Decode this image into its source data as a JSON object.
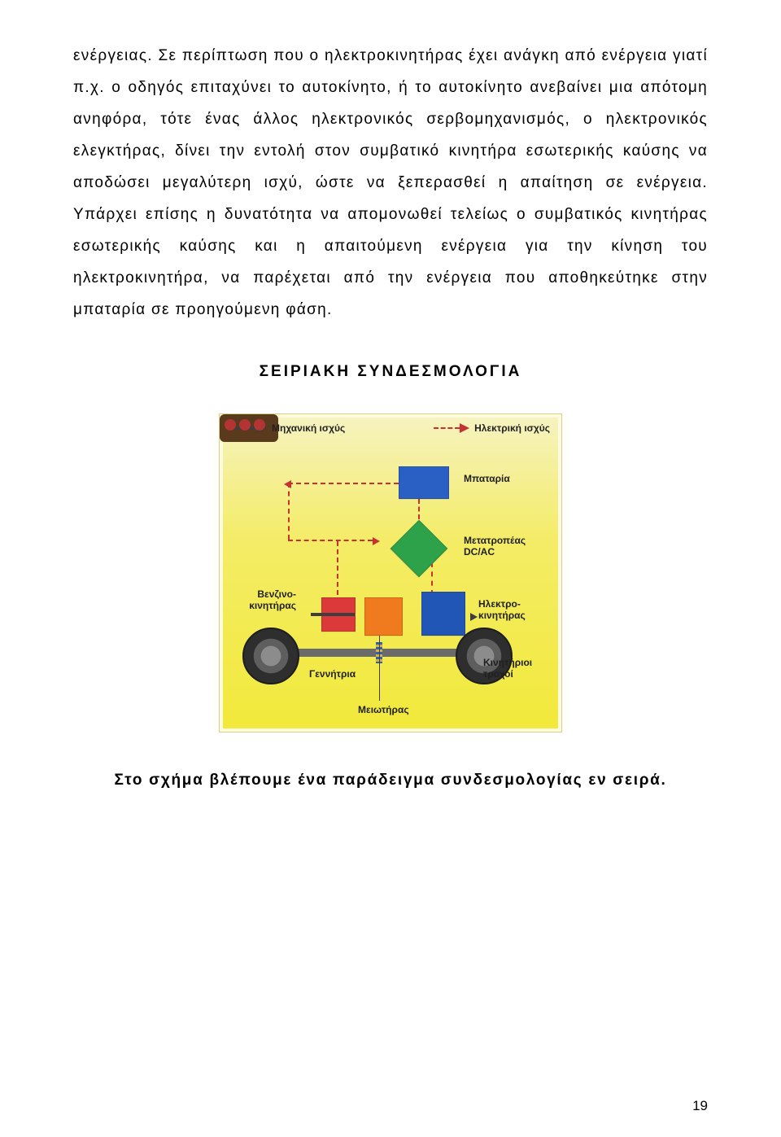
{
  "body_paragraph": "ενέργειας. Σε περίπτωση που ο ηλεκτροκινητήρας έχει ανάγκη από ενέργεια γιατί π.χ. ο οδηγός επιταχύνει το αυτοκίνητο, ή το αυτοκίνητο ανεβαίνει μια απότομη ανηφόρα, τότε ένας άλλος ηλεκτρονικός σερβομηχανισμός, ο ηλεκτρονικός ελεγκτήρας, δίνει την εντολή στον συμβατικό κινητήρα εσωτερικής καύσης να αποδώσει μεγαλύτερη ισχύ, ώστε να ξεπερασθεί η απαίτηση σε ενέργεια. Υπάρχει επίσης η δυνατότητα να απομονωθεί τελείως ο συμβατικός κινητήρας εσωτερικής καύσης και η απαιτούμενη ενέργεια για την κίνηση του ηλεκτροκινητήρα, να παρέχεται από την ενέργεια που αποθηκεύτηκε στην μπαταρία σε προηγούμενη φάση.",
  "section_heading": "ΣΕΙΡΙΑΚΗ ΣΥΝΔΕΣΜΟΛΟΓΙΑ",
  "caption": "Στο σχήμα βλέπουμε ένα παράδειγμα συνδεσμολογίας εν σειρά.",
  "page_number": "19",
  "diagram": {
    "type": "infographic",
    "background_gradient": [
      "#f6f3c2",
      "#f4ec66",
      "#f2e93a"
    ],
    "legend": {
      "mechanical": {
        "label": "Μηχανική ισχύς",
        "color": "#3e3e3e",
        "style": "solid"
      },
      "electrical": {
        "label": "Ηλεκτρική ισχύς",
        "color": "#c63232",
        "style": "dashed"
      }
    },
    "labels": {
      "battery": "Μπαταρία",
      "converter_line1": "Μετατροπέας",
      "converter_line2": "DC/AC",
      "emotor_line1": "Ηλεκτρο-",
      "emotor_line2": "κινητήρας",
      "drive_line1": "Κινητήριοι",
      "drive_line2": "τροχοί",
      "generator": "Γεννήτρια",
      "gearbox": "Μειωτήρας",
      "engine_line1": "Βενζινο-",
      "engine_line2": "κινητήρας"
    },
    "block_colors": {
      "battery": "#2a5fc4",
      "converter": "#2ea24a",
      "emotor": "#2256b6",
      "gearbox": "#f07a1e",
      "generator": "#dc3a3a",
      "engine": "#5a3a1d"
    }
  }
}
